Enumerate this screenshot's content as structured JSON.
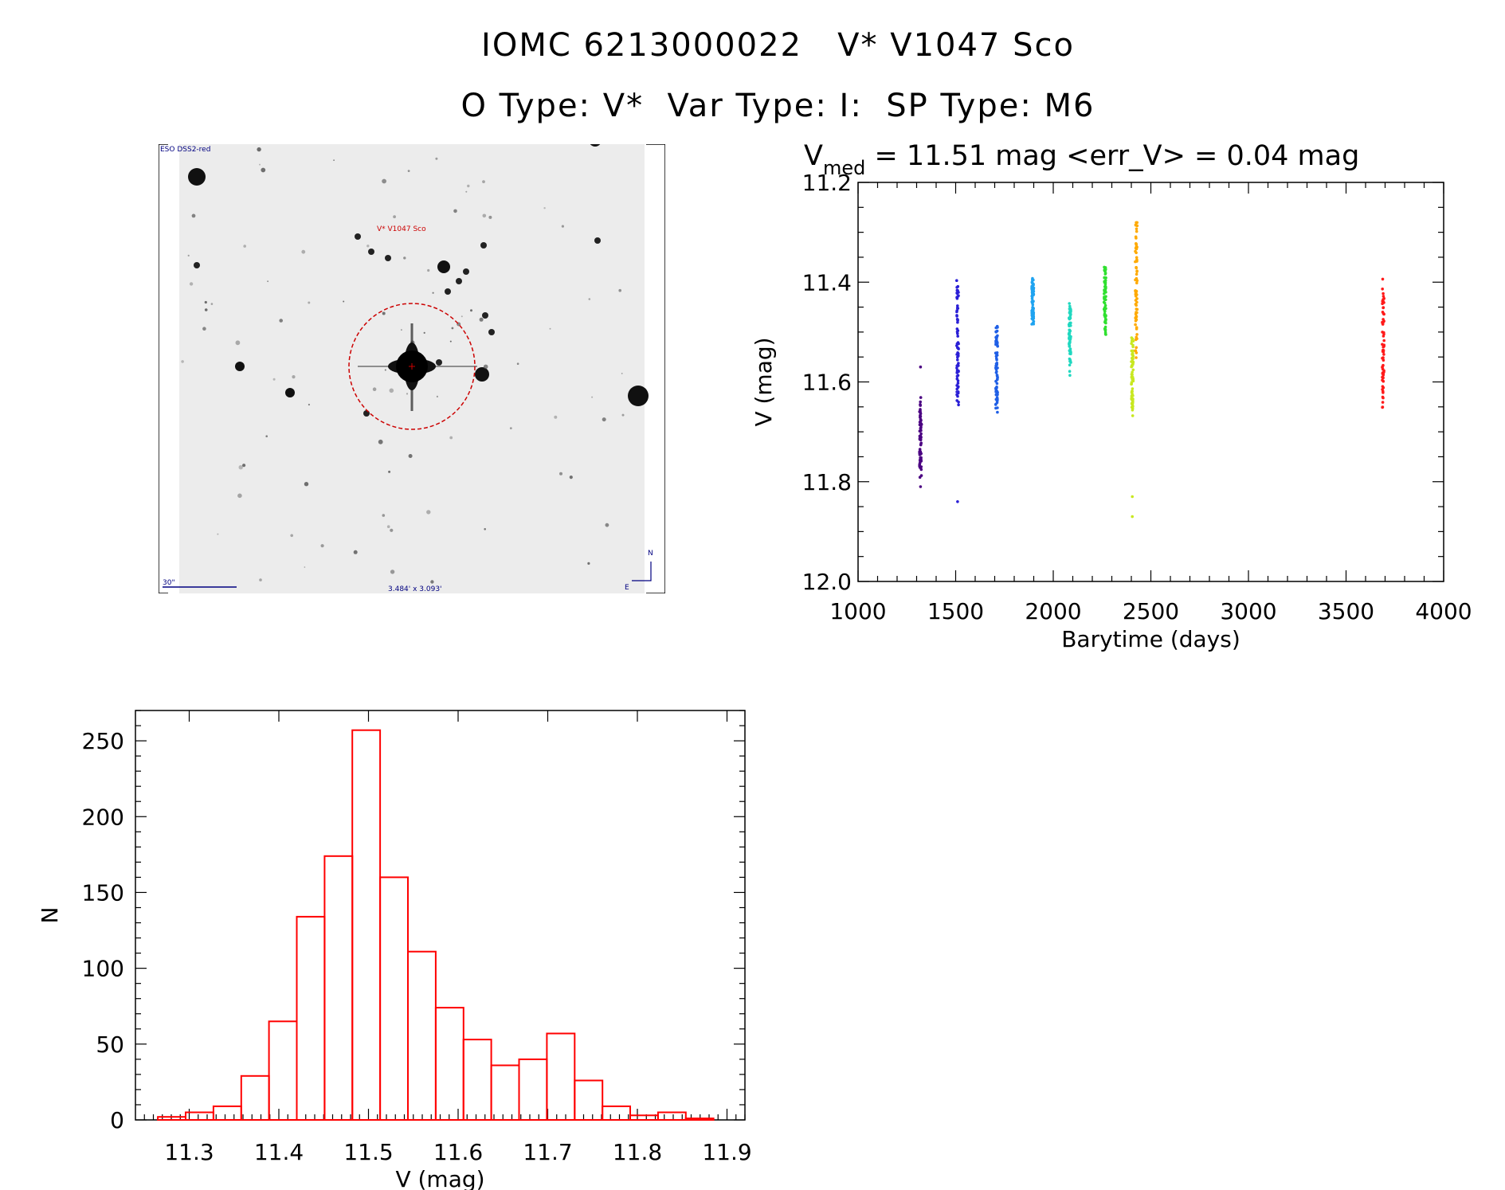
{
  "header": {
    "title_line1": "IOMC 6213000022   V* V1047 Sco",
    "title_line2": "O Type: V*  Var Type: I:  SP Type: M6"
  },
  "finder_image": {
    "survey_label": "ESO DSS2-red",
    "target_label": "V* V1047 Sco",
    "scale_label": "30\"",
    "fov_label": "3.484' x 3.093'",
    "north_label": "N",
    "east_label": "E"
  },
  "light_curve": {
    "stats_prefix": "V",
    "stats_sub": "med",
    "stats_rest": " = 11.51 mag <err_V> = 0.04 mag"
  },
  "chart_data": [
    {
      "type": "scatter",
      "xlabel": "Barytime (days)",
      "ylabel": "V (mag)",
      "xlim": [
        1000,
        4000
      ],
      "ylim": [
        12.0,
        11.2
      ],
      "y_inverted": true,
      "xticks": [
        "1000",
        "1500",
        "2000",
        "2500",
        "3000",
        "3500",
        "4000"
      ],
      "yticks": [
        "11.2",
        "11.4",
        "11.6",
        "11.8",
        "12.0"
      ],
      "series": [
        {
          "color": "#4b0082",
          "x_center": 1320,
          "y_range": [
            11.63,
            11.8
          ],
          "y_median": 11.72,
          "outliers": [
            11.57,
            11.81
          ]
        },
        {
          "color": "#2a1fd6",
          "x_center": 1510,
          "y_range": [
            11.38,
            11.68
          ],
          "y_median": 11.52,
          "outliers": [
            11.84
          ]
        },
        {
          "color": "#1f5fe6",
          "x_center": 1710,
          "y_range": [
            11.47,
            11.67
          ],
          "y_median": 11.6
        },
        {
          "color": "#1fa3f0",
          "x_center": 1895,
          "y_range": [
            11.39,
            11.49
          ],
          "y_median": 11.45
        },
        {
          "color": "#20d8c0",
          "x_center": 2085,
          "y_range": [
            11.43,
            11.59
          ],
          "y_median": 11.51
        },
        {
          "color": "#30e030",
          "x_center": 2265,
          "y_range": [
            11.35,
            11.52
          ],
          "y_median": 11.44
        },
        {
          "color": "#c8e820",
          "x_center": 2405,
          "y_range": [
            11.5,
            11.68
          ],
          "y_median": 11.59,
          "outliers": [
            11.83,
            11.87
          ]
        },
        {
          "color": "#ffaa00",
          "x_center": 2425,
          "y_range": [
            11.27,
            11.56
          ],
          "y_median": 11.42
        },
        {
          "color": "#ff1a1a",
          "x_center": 3690,
          "y_range": [
            11.39,
            11.66
          ],
          "y_median": 11.52
        }
      ]
    },
    {
      "type": "bar",
      "style": "step-histogram",
      "color": "#ff0000",
      "xlabel": "V (mag)",
      "ylabel": "N",
      "xlim": [
        11.24,
        11.92
      ],
      "ylim": [
        0,
        270
      ],
      "xticks": [
        "11.3",
        "11.4",
        "11.5",
        "11.6",
        "11.7",
        "11.8",
        "11.9"
      ],
      "yticks": [
        "0",
        "50",
        "100",
        "150",
        "200",
        "250"
      ],
      "bin_width": 0.031,
      "bin_starts": [
        11.265,
        11.296,
        11.327,
        11.358,
        11.389,
        11.42,
        11.451,
        11.482,
        11.513,
        11.544,
        11.575,
        11.606,
        11.637,
        11.668,
        11.699,
        11.73,
        11.761,
        11.792,
        11.823,
        11.854
      ],
      "values": [
        2,
        5,
        9,
        29,
        65,
        134,
        174,
        257,
        160,
        111,
        74,
        53,
        36,
        40,
        57,
        26,
        9,
        3,
        5,
        1
      ]
    }
  ]
}
